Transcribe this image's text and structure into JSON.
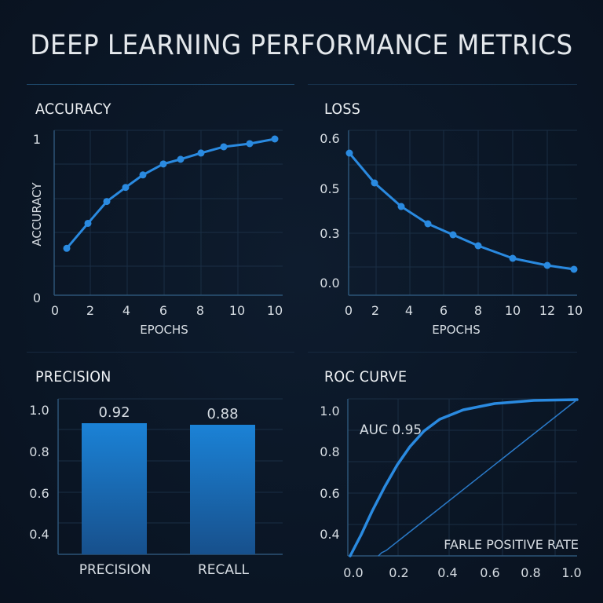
{
  "page": {
    "title": "DEEP LEARNING PERFORMANCE METRICS"
  },
  "colors": {
    "background": "#0b1626",
    "line": "#2a8ae0",
    "grid": "#1a2e44",
    "axis": "#2c5477",
    "bar_top": "#1b82d6",
    "bar_bottom": "#17508c",
    "text": "#e6eaee"
  },
  "panels": {
    "accuracy": {
      "title": "ACCURACY"
    },
    "loss": {
      "title": "LOSS"
    },
    "precision": {
      "title": "PRECISION"
    },
    "roc": {
      "title": "ROC CURVE"
    }
  },
  "chart_data": [
    {
      "id": "accuracy",
      "type": "line",
      "title": "ACCURACY",
      "xlabel": "EPOCHS",
      "ylabel": "ACCURACY",
      "x_tick_labels": [
        "0",
        "2",
        "4",
        "6",
        "8",
        "10",
        "10"
      ],
      "y_tick_labels": [
        "1",
        "0"
      ],
      "ylim": [
        0,
        1
      ],
      "grid": true,
      "series": [
        {
          "name": "accuracy",
          "x": [
            0.7,
            1.9,
            2.9,
            4.0,
            4.9,
            6.0,
            6.9,
            8.0,
            9.2,
            10.6,
            12.0
          ],
          "values": [
            0.3,
            0.46,
            0.6,
            0.69,
            0.77,
            0.84,
            0.87,
            0.91,
            0.95,
            0.97,
            1.0
          ]
        }
      ]
    },
    {
      "id": "loss",
      "type": "line",
      "title": "LOSS",
      "xlabel": "EPOCHS",
      "ylabel": "",
      "x_tick_labels": [
        "0",
        "2",
        "4",
        "6",
        "8",
        "10",
        "12",
        "10"
      ],
      "y_tick_labels": [
        "0.6",
        "0.5",
        "0.3",
        "0.0"
      ],
      "grid": true,
      "series": [
        {
          "name": "loss",
          "x": [
            0,
            1.5,
            3.6,
            5.1,
            6.6,
            8.0,
            10.0,
            12.0,
            13.6
          ],
          "values": [
            0.57,
            0.46,
            0.39,
            0.33,
            0.29,
            0.25,
            0.2,
            0.17,
            0.15
          ]
        }
      ]
    },
    {
      "id": "precision",
      "type": "bar",
      "title": "PRECISION",
      "categories": [
        "PRECISION",
        "RECALL"
      ],
      "values": [
        0.92,
        0.88
      ],
      "value_labels": [
        "0.92",
        "0.88"
      ],
      "y_tick_labels": [
        "1.0",
        "0.8",
        "0.6",
        "0.4"
      ],
      "ylim": [
        0.3,
        1.05
      ],
      "grid": true
    },
    {
      "id": "roc",
      "type": "line",
      "title": "ROC CURVE",
      "xlabel": "FARLE POSITIVE RATE",
      "annotation": "AUC 0.95",
      "x_tick_labels": [
        "0.0",
        "0.2",
        "0.4",
        "0.6",
        "0.8",
        "1.0"
      ],
      "y_tick_labels": [
        "1.0",
        "0.8",
        "0.6",
        "0.4"
      ],
      "grid": true,
      "series": [
        {
          "name": "roc",
          "x": [
            0.0,
            0.05,
            0.1,
            0.15,
            0.2,
            0.25,
            0.32,
            0.4,
            0.5,
            0.64,
            0.81,
            1.0
          ],
          "values": [
            0.3,
            0.39,
            0.49,
            0.59,
            0.68,
            0.75,
            0.81,
            0.86,
            0.89,
            0.92,
            0.93,
            0.94
          ]
        },
        {
          "name": "random-baseline",
          "x": [
            0.12,
            0.14,
            1.0
          ],
          "values": [
            0.3,
            0.32,
            0.94
          ]
        }
      ]
    }
  ]
}
